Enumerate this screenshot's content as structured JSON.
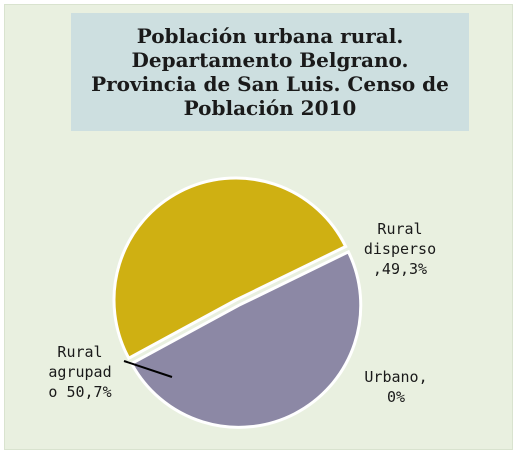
{
  "chart_data": {
    "type": "pie",
    "title": "Población urbana rural.\nDepartamento Belgrano.\nProvincia de San Luis. Censo de\nPoblación 2010",
    "slices": [
      {
        "label_lines": [
          "Rural",
          "disperso",
          ",49,3%"
        ],
        "value": 49.3,
        "color": "#8c88a5"
      },
      {
        "label_lines": [
          "Urbano,",
          "0%"
        ],
        "value": 0,
        "color": "#4e6f9a"
      },
      {
        "label_lines": [
          "Rural",
          "agrupad",
          "o 50,7%"
        ],
        "value": 50.7,
        "color": "#cfb012"
      }
    ]
  }
}
